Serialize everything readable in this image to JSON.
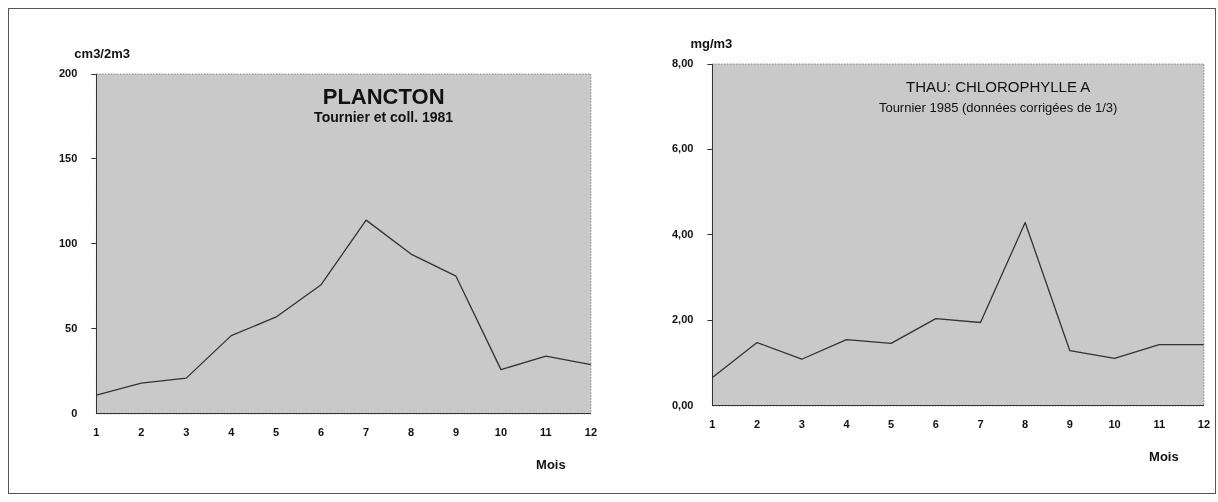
{
  "chart_data": [
    {
      "type": "line",
      "title": "PLANCTON",
      "subtitle": "Tournier et coll. 1981",
      "ylabel": "cm3/2m3",
      "xlabel": "Mois",
      "x": [
        1,
        2,
        3,
        4,
        5,
        6,
        7,
        8,
        9,
        10,
        11,
        12
      ],
      "values": [
        11,
        18,
        21,
        46,
        57,
        76,
        114,
        94,
        81,
        26,
        34,
        29
      ],
      "color": "#333333",
      "xlim": [
        1,
        12
      ],
      "ylim": [
        0,
        200
      ],
      "xticks": [
        1,
        2,
        3,
        4,
        5,
        6,
        7,
        8,
        9,
        10,
        11,
        12
      ],
      "yticks": [
        0,
        50,
        100,
        150,
        200
      ],
      "grid": false,
      "marker": "none",
      "legend": false
    },
    {
      "type": "line",
      "title": "THAU: CHLOROPHYLLE A",
      "subtitle": "Tournier 1985 (données corrigées de 1/3)",
      "ylabel": "mg/m3",
      "xlabel": "Mois",
      "x": [
        1,
        2,
        3,
        4,
        5,
        6,
        7,
        8,
        9,
        10,
        11,
        12
      ],
      "values": [
        0.66,
        1.48,
        1.09,
        1.55,
        1.46,
        2.04,
        1.95,
        4.29,
        1.29,
        1.11,
        1.43,
        1.43
      ],
      "color": "#333333",
      "xlim": [
        1,
        12
      ],
      "ylim": [
        0,
        8
      ],
      "xticks": [
        1,
        2,
        3,
        4,
        5,
        6,
        7,
        8,
        9,
        10,
        11,
        12
      ],
      "yticks": [
        {
          "value": 0,
          "label": "0,00"
        },
        {
          "value": 2,
          "label": "2,00"
        },
        {
          "value": 4,
          "label": "4,00"
        },
        {
          "value": 6,
          "label": "6,00"
        },
        {
          "value": 8,
          "label": "8,00"
        }
      ],
      "grid": false,
      "marker": "none",
      "legend": false
    }
  ]
}
